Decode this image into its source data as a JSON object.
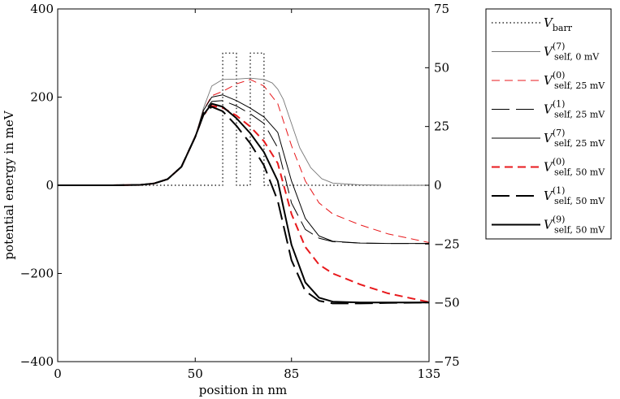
{
  "chart_data": {
    "type": "line",
    "xlabel": "position in nm",
    "ylabel": "potential energy in meV",
    "x_ticks": [
      0,
      50,
      85,
      135
    ],
    "y_ticks": [
      -400,
      -200,
      0,
      200,
      400
    ],
    "y2_ticks": [
      -75,
      -50,
      -25,
      0,
      25,
      50,
      75
    ],
    "xlim": [
      0,
      135
    ],
    "ylim": [
      -400,
      400
    ],
    "y2lim": [
      -75,
      75
    ],
    "grid": false,
    "legend_position": "outside-right",
    "series": [
      {
        "legend_base": "V",
        "legend_sub": "barr",
        "legend_sup": "",
        "color": "#000000",
        "dash": "dotted",
        "width": 1.2,
        "x": [
          0,
          60,
          60,
          65,
          65,
          70,
          70,
          75,
          75,
          135
        ],
        "y": [
          0,
          0,
          300,
          300,
          0,
          0,
          300,
          300,
          0,
          0
        ]
      },
      {
        "legend_base": "V",
        "legend_sub": "self, 0 mV",
        "legend_sup": "(7)",
        "color": "#777777",
        "dash": "solid",
        "width": 0.9,
        "x": [
          0,
          20,
          30,
          35,
          40,
          45,
          50,
          53,
          56,
          60,
          65,
          70,
          75,
          78,
          80,
          82,
          85,
          88,
          92,
          96,
          100,
          110,
          120,
          135
        ],
        "y": [
          0,
          0,
          1,
          4,
          14,
          42,
          110,
          175,
          225,
          240,
          241,
          243,
          240,
          232,
          218,
          195,
          140,
          85,
          40,
          15,
          5,
          1,
          0,
          0
        ]
      },
      {
        "legend_base": "V",
        "legend_sub": "self, 25 mV",
        "legend_sup": "(0)",
        "color": "#e8191c",
        "dash": "medium",
        "width": 1.0,
        "x": [
          0,
          20,
          30,
          35,
          40,
          45,
          50,
          53,
          56,
          60,
          65,
          70,
          75,
          80,
          85,
          90,
          95,
          100,
          110,
          120,
          135
        ],
        "y": [
          0,
          0,
          1,
          4,
          14,
          42,
          110,
          170,
          203,
          213,
          230,
          240,
          225,
          185,
          90,
          10,
          -40,
          -65,
          -90,
          -110,
          -130
        ]
      },
      {
        "legend_base": "V",
        "legend_sub": "self, 25 mV",
        "legend_sup": "(1)",
        "color": "#000000",
        "dash": "long",
        "width": 1.0,
        "x": [
          0,
          20,
          30,
          35,
          40,
          45,
          50,
          53,
          56,
          60,
          65,
          70,
          75,
          80,
          85,
          90,
          95,
          100,
          110,
          120,
          135
        ],
        "y": [
          0,
          0,
          1,
          4,
          14,
          42,
          110,
          165,
          190,
          192,
          180,
          162,
          140,
          85,
          -40,
          -100,
          -120,
          -128,
          -131,
          -132,
          -132
        ]
      },
      {
        "legend_base": "V",
        "legend_sub": "self, 25 mV",
        "legend_sup": "(7)",
        "color": "#000000",
        "dash": "solid",
        "width": 1.0,
        "x": [
          0,
          20,
          30,
          35,
          40,
          45,
          50,
          53,
          56,
          60,
          65,
          70,
          75,
          80,
          85,
          90,
          95,
          100,
          110,
          120,
          135
        ],
        "y": [
          0,
          0,
          1,
          4,
          14,
          42,
          110,
          170,
          200,
          205,
          192,
          175,
          155,
          120,
          10,
          -75,
          -115,
          -127,
          -131,
          -132,
          -132
        ]
      },
      {
        "legend_base": "V",
        "legend_sub": "self, 50 mV",
        "legend_sup": "(0)",
        "color": "#e8191c",
        "dash": "medium",
        "width": 2.0,
        "x": [
          0,
          20,
          30,
          35,
          40,
          45,
          50,
          53,
          56,
          60,
          65,
          70,
          75,
          80,
          85,
          90,
          95,
          100,
          110,
          120,
          135
        ],
        "y": [
          0,
          0,
          1,
          4,
          14,
          42,
          110,
          160,
          180,
          176,
          158,
          133,
          100,
          50,
          -65,
          -140,
          -180,
          -200,
          -225,
          -245,
          -265
        ]
      },
      {
        "legend_base": "V",
        "legend_sub": "self, 50 mV",
        "legend_sup": "(1)",
        "color": "#000000",
        "dash": "long",
        "width": 2.0,
        "x": [
          0,
          20,
          30,
          35,
          40,
          45,
          50,
          53,
          56,
          60,
          65,
          70,
          75,
          80,
          85,
          90,
          95,
          100,
          110,
          120,
          135
        ],
        "y": [
          0,
          0,
          1,
          4,
          14,
          42,
          110,
          160,
          178,
          168,
          135,
          95,
          45,
          -35,
          -170,
          -240,
          -262,
          -268,
          -268,
          -267,
          -266
        ]
      },
      {
        "legend_base": "V",
        "legend_sub": "self, 50 mV",
        "legend_sup": "(9)",
        "color": "#000000",
        "dash": "solid",
        "width": 2.0,
        "x": [
          0,
          20,
          30,
          35,
          40,
          45,
          50,
          53,
          56,
          60,
          65,
          70,
          75,
          80,
          85,
          90,
          95,
          100,
          110,
          120,
          135
        ],
        "y": [
          0,
          0,
          1,
          4,
          14,
          42,
          110,
          160,
          185,
          178,
          152,
          118,
          75,
          10,
          -135,
          -220,
          -255,
          -264,
          -266,
          -266,
          -266
        ]
      }
    ]
  }
}
